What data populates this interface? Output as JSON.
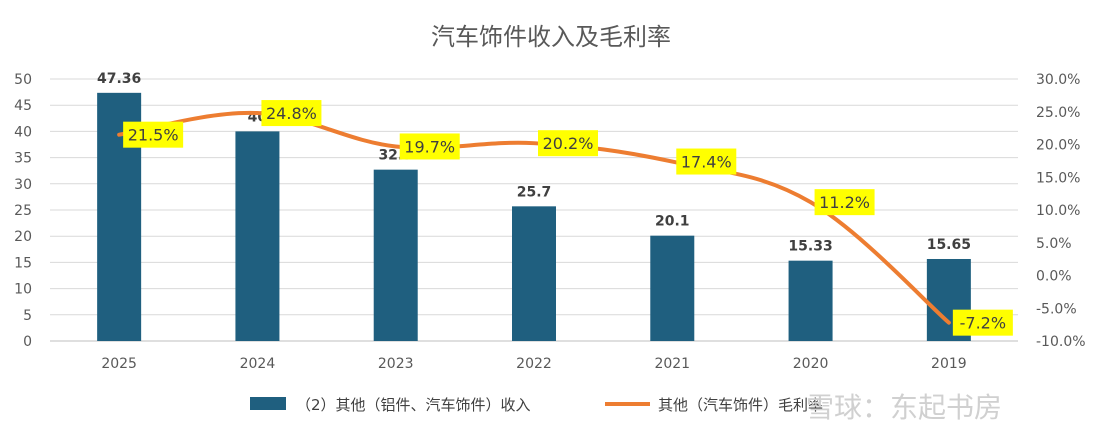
{
  "chart_data": {
    "type": "bar+line",
    "title": "汽车饰件收入及毛利率",
    "categories": [
      "2025",
      "2024",
      "2023",
      "2022",
      "2021",
      "2020",
      "2019"
    ],
    "series": [
      {
        "name": "（2）其他（铝件、汽车饰件）收入",
        "type": "bar",
        "axis": "left",
        "color": "#1F5F7F",
        "values": [
          47.36,
          40,
          32.7,
          25.7,
          20.1,
          15.33,
          15.65
        ],
        "labels": [
          "47.36",
          "40",
          "32.7",
          "25.7",
          "20.1",
          "15.33",
          "15.65"
        ]
      },
      {
        "name": "其他（汽车饰件）毛利率",
        "type": "line",
        "axis": "right",
        "color": "#ED7D31",
        "values": [
          21.5,
          24.8,
          19.7,
          20.2,
          17.4,
          11.2,
          -7.2
        ],
        "labels": [
          "21.5%",
          "24.8%",
          "19.7%",
          "20.2%",
          "17.4%",
          "11.2%",
          "-7.2%"
        ],
        "label_bg": "#FFFF00"
      }
    ],
    "left_axis": {
      "min": 0,
      "max": 50,
      "step": 5,
      "ticks": [
        "0",
        "5",
        "10",
        "15",
        "20",
        "25",
        "30",
        "35",
        "40",
        "45",
        "50"
      ]
    },
    "right_axis": {
      "min": -10,
      "max": 30,
      "step": 5,
      "ticks": [
        "-10.0%",
        "-5.0%",
        "0.0%",
        "5.0%",
        "10.0%",
        "15.0%",
        "20.0%",
        "25.0%",
        "30.0%"
      ]
    },
    "grid": true,
    "legend_position": "bottom"
  },
  "watermark": "雪球：东起书房"
}
